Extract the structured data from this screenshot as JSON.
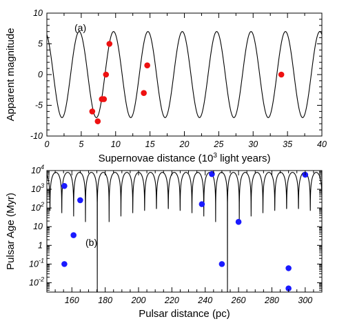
{
  "chart_data": [
    {
      "type": "scatter",
      "panel_label": "(a)",
      "xlabel_main": "Supernovae distance (10",
      "xlabel_sup": "3",
      "xlabel_tail": " light years)",
      "ylabel": "Apparent magnitude",
      "xlim": [
        0,
        40
      ],
      "ylim": [
        -10,
        10
      ],
      "xticks": [
        0,
        5,
        10,
        15,
        20,
        25,
        30,
        35,
        40
      ],
      "xtick_labels": [
        "0",
        "5",
        "10",
        "15",
        "20",
        "25",
        "30",
        "35",
        "40"
      ],
      "yticks": [
        -10,
        -5,
        0,
        5,
        10
      ],
      "ytick_labels": [
        "-10",
        "-5",
        "0",
        "5",
        "10"
      ],
      "curve": {
        "type": "cosine",
        "amplitude": 7,
        "period": 5,
        "phase_zero_at": 4.7
      },
      "point_color": "#ee1111",
      "points": [
        {
          "x": 6.6,
          "y": -6.0
        },
        {
          "x": 7.4,
          "y": -7.6
        },
        {
          "x": 8.0,
          "y": -4.0
        },
        {
          "x": 8.3,
          "y": -4.0
        },
        {
          "x": 8.6,
          "y": 0.0
        },
        {
          "x": 9.1,
          "y": 5.0
        },
        {
          "x": 14.1,
          "y": -3.0
        },
        {
          "x": 14.6,
          "y": 1.5
        },
        {
          "x": 34.1,
          "y": 0.0
        }
      ]
    },
    {
      "type": "scatter",
      "panel_label": "(b)",
      "xlabel": "Pulsar distance (pc)",
      "ylabel": "Pulsar Age (Myr)",
      "y_scale": "log",
      "xlim": [
        145,
        310
      ],
      "ylim_log10": [
        -2.5,
        4
      ],
      "xticks": [
        160,
        180,
        200,
        220,
        240,
        260,
        280,
        300
      ],
      "xtick_labels": [
        "160",
        "180",
        "200",
        "220",
        "240",
        "260",
        "280",
        "300"
      ],
      "yticks": [
        {
          "base": "10",
          "exp": "4"
        },
        {
          "base": "10",
          "exp": "3"
        },
        {
          "base": "10",
          "exp": "2"
        },
        {
          "base": "10",
          "exp": ""
        },
        {
          "base": "1",
          "exp": ""
        },
        {
          "base": "10",
          "exp": "-1"
        },
        {
          "base": "10",
          "exp": "-2"
        }
      ],
      "curve": {
        "type": "abs-cosine",
        "period": 7.1,
        "phase_zero_at": 150.4,
        "peak_age": 8000
      },
      "point_color": "#1a1aff",
      "points": [
        {
          "x": 155.5,
          "y": 1500
        },
        {
          "x": 155.5,
          "y": 0.1
        },
        {
          "x": 161.0,
          "y": 3.5
        },
        {
          "x": 165.0,
          "y": 260
        },
        {
          "x": 238.0,
          "y": 160
        },
        {
          "x": 244.0,
          "y": 6500
        },
        {
          "x": 250.0,
          "y": 0.1
        },
        {
          "x": 260.0,
          "y": 18
        },
        {
          "x": 290.0,
          "y": 0.06
        },
        {
          "x": 290.0,
          "y": 0.005
        },
        {
          "x": 300.0,
          "y": 6000
        }
      ]
    }
  ]
}
